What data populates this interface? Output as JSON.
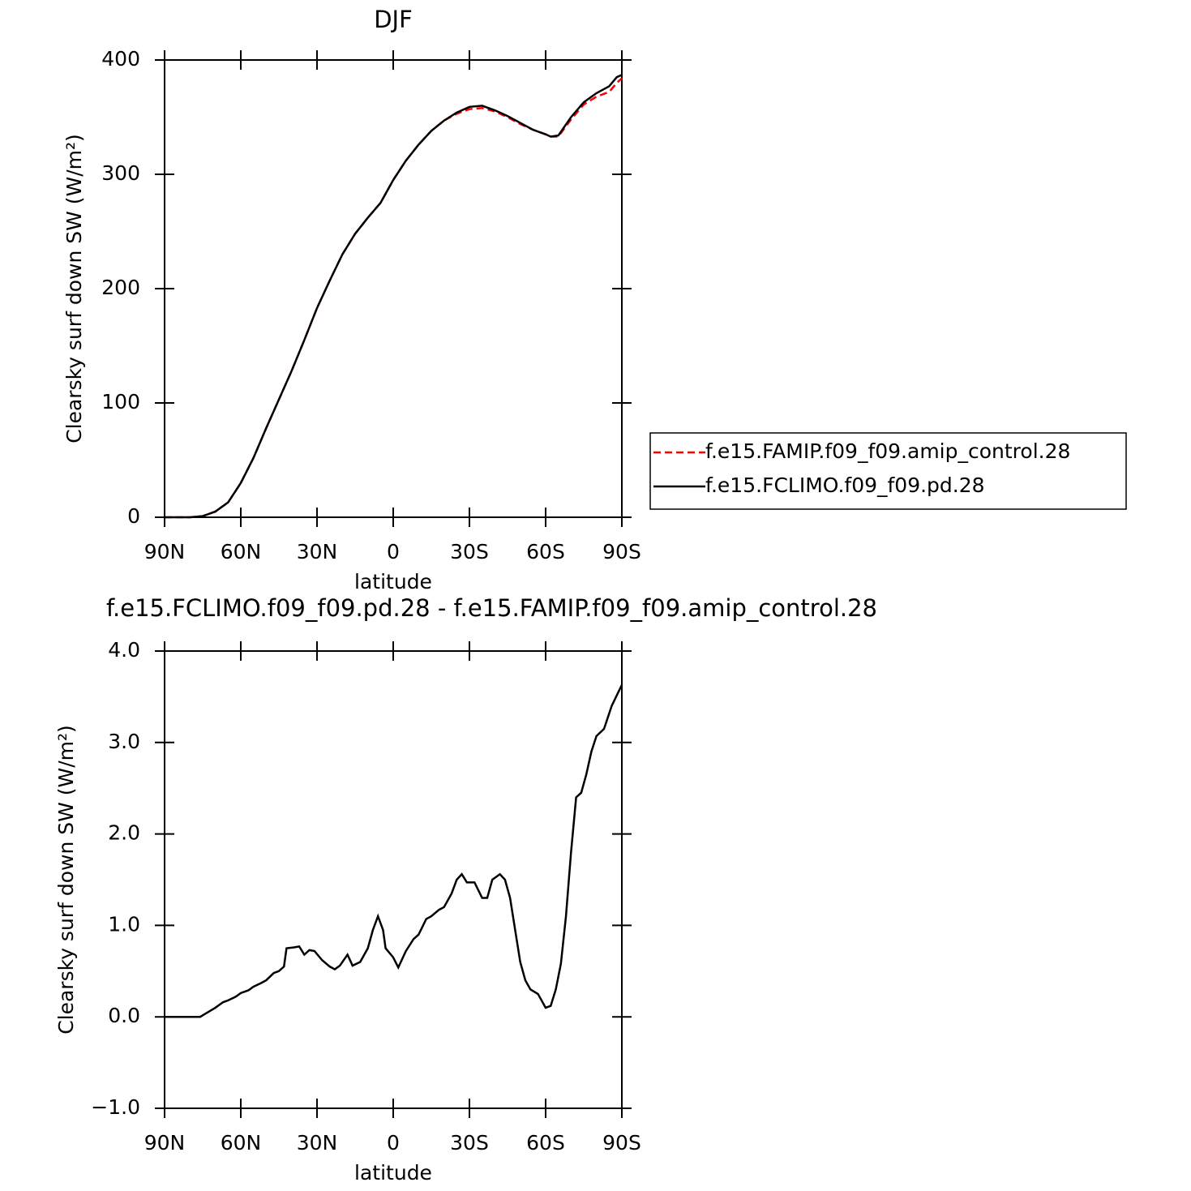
{
  "chart_data": [
    {
      "type": "line",
      "title": "DJF",
      "xlabel": "latitude",
      "ylabel": "Clearsky surf down SW (W/m²)",
      "x": [
        90,
        80,
        75,
        70,
        65,
        60,
        55,
        50,
        45,
        40,
        35,
        30,
        25,
        20,
        15,
        10,
        5,
        0,
        -5,
        -10,
        -15,
        -20,
        -25,
        -30,
        -35,
        -40,
        -45,
        -50,
        -55,
        -60,
        -62,
        -65,
        -70,
        -75,
        -80,
        -85,
        -88,
        -90
      ],
      "series": [
        {
          "name": "f.e15.FAMIP.f09_f09.amip_control.28",
          "color": "#ff0000",
          "dash": "dashed",
          "values": [
            0,
            0,
            1,
            5,
            13,
            30,
            52,
            78,
            103,
            128,
            155,
            183,
            207,
            230,
            248,
            262,
            275,
            295,
            312,
            326,
            338,
            347,
            353,
            357,
            358,
            355,
            350,
            344,
            339,
            335,
            333,
            333,
            348,
            361,
            368,
            372,
            380,
            384
          ]
        },
        {
          "name": "f.e15.FCLIMO.f09_f09.pd.28",
          "color": "#000000",
          "dash": "solid",
          "values": [
            0,
            0,
            1,
            5,
            13,
            30,
            52,
            78,
            103,
            128,
            155,
            183,
            207,
            230,
            248,
            262,
            275,
            295,
            312,
            326,
            338,
            347,
            354,
            359,
            360,
            356,
            351,
            345,
            339,
            335,
            333,
            334,
            350,
            363,
            371,
            377,
            385,
            387
          ]
        }
      ],
      "xlim": [
        90,
        -90
      ],
      "xticks": [
        {
          "value": 90,
          "label": "90N"
        },
        {
          "value": 60,
          "label": "60N"
        },
        {
          "value": 30,
          "label": "30N"
        },
        0,
        {
          "value": -30,
          "label": "30S"
        },
        {
          "value": -60,
          "label": "60S"
        },
        {
          "value": -90,
          "label": "90S"
        }
      ],
      "ylim": [
        0,
        400
      ],
      "yticks": [
        0,
        100,
        200,
        300,
        400
      ],
      "legend": "right"
    },
    {
      "type": "line",
      "title": "f.e15.FCLIMO.f09_f09.pd.28 - f.e15.FAMIP.f09_f09.amip_control.28",
      "xlabel": "latitude",
      "ylabel": "Clearsky surf down SW (W/m²)",
      "x": [
        90,
        80,
        76,
        73,
        70,
        67,
        65,
        62,
        60,
        57,
        55,
        52,
        50,
        47,
        45,
        43,
        42,
        39,
        37,
        35,
        33,
        31,
        28,
        25,
        23,
        21,
        18,
        16,
        13,
        10,
        8,
        6,
        4,
        3,
        0,
        -2,
        -5,
        -8,
        -10,
        -13,
        -15,
        -18,
        -20,
        -23,
        -25,
        -27,
        -29,
        -32,
        -35,
        -37,
        -39,
        -42,
        -44,
        -46,
        -48,
        -50,
        -52,
        -54,
        -57,
        -60,
        -62,
        -64,
        -66,
        -68,
        -70,
        -72,
        -74,
        -76,
        -78,
        -80,
        -83,
        -86,
        -90
      ],
      "series": [
        {
          "color": "#000000",
          "dash": "solid",
          "values": [
            0,
            0,
            0,
            0.05,
            0.1,
            0.16,
            0.18,
            0.22,
            0.26,
            0.29,
            0.33,
            0.37,
            0.4,
            0.48,
            0.5,
            0.55,
            0.75,
            0.76,
            0.77,
            0.68,
            0.73,
            0.72,
            0.62,
            0.55,
            0.52,
            0.56,
            0.68,
            0.56,
            0.6,
            0.75,
            0.95,
            1.1,
            0.95,
            0.75,
            0.65,
            0.54,
            0.72,
            0.85,
            0.9,
            1.07,
            1.1,
            1.17,
            1.2,
            1.35,
            1.5,
            1.56,
            1.47,
            1.47,
            1.3,
            1.3,
            1.5,
            1.56,
            1.5,
            1.3,
            0.95,
            0.6,
            0.4,
            0.3,
            0.25,
            0.1,
            0.12,
            0.3,
            0.58,
            1.1,
            1.8,
            2.4,
            2.45,
            2.65,
            2.9,
            3.07,
            3.15,
            3.4,
            3.63
          ]
        }
      ],
      "xlim": [
        90,
        -90
      ],
      "xticks": [
        {
          "value": 90,
          "label": "90N"
        },
        {
          "value": 60,
          "label": "60N"
        },
        {
          "value": 30,
          "label": "30N"
        },
        0,
        {
          "value": -30,
          "label": "30S"
        },
        {
          "value": -60,
          "label": "60S"
        },
        {
          "value": -90,
          "label": "90S"
        }
      ],
      "ylim": [
        -1,
        4
      ],
      "yticks": [
        {
          "value": -1,
          "label": "−1.0"
        },
        {
          "value": 0,
          "label": "0.0"
        },
        {
          "value": 1,
          "label": "1.0"
        },
        {
          "value": 2,
          "label": "2.0"
        },
        {
          "value": 3,
          "label": "3.0"
        },
        {
          "value": 4,
          "label": "4.0"
        }
      ]
    }
  ]
}
